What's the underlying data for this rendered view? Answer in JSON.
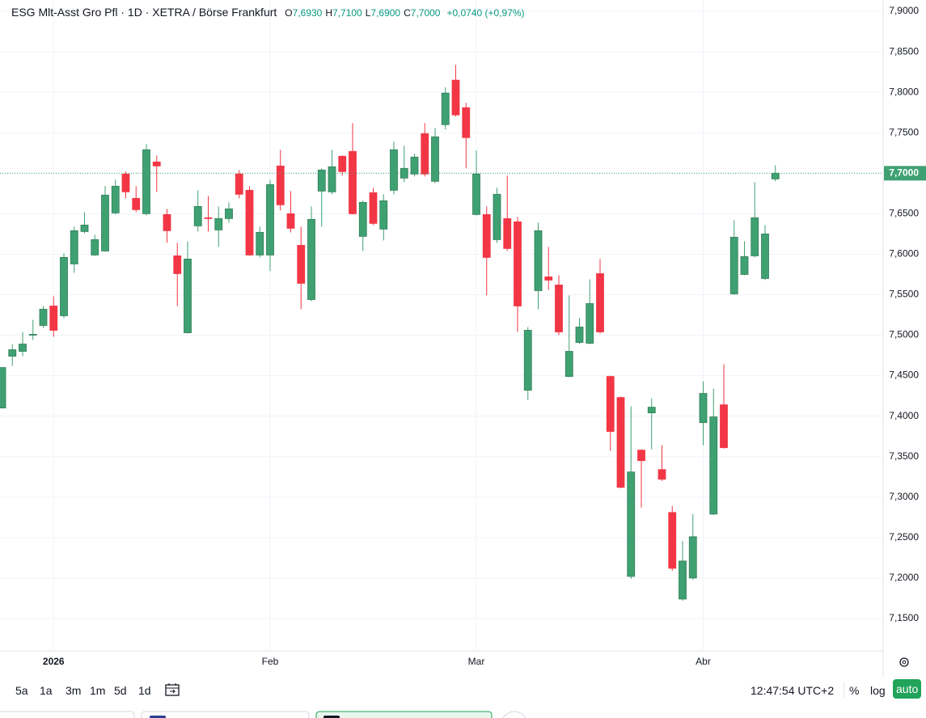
{
  "chart_data": {
    "type": "candlestick",
    "title": "ESG Mlt-Asst Gro Pfl · 1D · XETRA / Börse Frankfurt",
    "ohlc_header": [
      {
        "key": "O",
        "text": "7,6930"
      },
      {
        "key": "H",
        "text": "7,7100"
      },
      {
        "key": "L",
        "text": "7,6900"
      },
      {
        "key": "C",
        "text": "7,7000"
      }
    ],
    "change_text": "+0,0740 (+0,97%)",
    "categories": [
      null,
      null,
      null,
      null,
      null,
      "2026",
      null,
      null,
      null,
      null,
      null,
      null,
      null,
      null,
      null,
      null,
      null,
      null,
      null,
      null,
      null,
      null,
      null,
      null,
      null,
      null,
      "Feb",
      null,
      null,
      null,
      null,
      null,
      null,
      null,
      null,
      null,
      null,
      null,
      null,
      null,
      null,
      null,
      null,
      null,
      null,
      null,
      "Mar",
      null,
      null,
      null,
      null,
      null,
      null,
      null,
      null,
      null,
      null,
      null,
      null,
      null,
      null,
      null,
      null,
      null,
      null,
      null,
      null,
      null,
      "Abr",
      null,
      null,
      null,
      null,
      null,
      null,
      null
    ],
    "open": [
      7.41,
      7.474,
      7.48,
      7.5,
      7.512,
      7.536,
      7.524,
      7.588,
      7.628,
      7.599,
      7.604,
      7.651,
      7.699,
      7.669,
      7.65,
      7.714,
      7.649,
      7.598,
      7.503,
      7.635,
      7.645,
      7.63,
      7.644,
      7.699,
      7.679,
      7.599,
      7.599,
      7.709,
      7.65,
      7.611,
      7.544,
      7.678,
      7.677,
      7.721,
      7.727,
      7.622,
      7.676,
      7.631,
      7.679,
      7.694,
      7.699,
      7.749,
      7.69,
      7.76,
      7.815,
      7.781,
      7.649,
      7.649,
      7.618,
      7.644,
      7.64,
      7.432,
      7.555,
      7.572,
      7.562,
      7.449,
      7.491,
      7.49,
      7.576,
      7.449,
      7.423,
      7.202,
      7.358,
      7.404,
      7.334,
      7.281,
      7.174,
      7.2,
      7.392,
      7.279,
      7.414,
      7.551,
      7.575,
      7.598,
      7.57,
      7.693
    ],
    "high": [
      7.46,
      7.489,
      7.504,
      7.519,
      7.536,
      7.548,
      7.601,
      7.634,
      7.652,
      7.624,
      7.684,
      7.692,
      7.702,
      7.684,
      7.736,
      7.722,
      7.656,
      7.614,
      7.616,
      7.679,
      7.672,
      7.659,
      7.664,
      7.704,
      7.684,
      7.634,
      7.692,
      7.729,
      7.678,
      7.634,
      7.659,
      7.706,
      7.729,
      7.722,
      7.762,
      7.666,
      7.682,
      7.674,
      7.739,
      7.734,
      7.724,
      7.762,
      7.756,
      7.806,
      7.834,
      7.787,
      7.728,
      7.659,
      7.682,
      7.697,
      7.646,
      7.51,
      7.639,
      7.609,
      7.574,
      7.549,
      7.521,
      7.569,
      7.594,
      7.45,
      7.424,
      7.412,
      7.359,
      7.422,
      7.364,
      7.289,
      7.246,
      7.279,
      7.443,
      7.434,
      7.464,
      7.642,
      7.616,
      7.689,
      7.636,
      7.71
    ],
    "low": [
      7.41,
      7.462,
      7.474,
      7.494,
      7.509,
      7.498,
      7.521,
      7.577,
      7.626,
      7.598,
      7.603,
      7.649,
      7.669,
      7.652,
      7.648,
      7.677,
      7.614,
      7.536,
      7.502,
      7.628,
      7.628,
      7.609,
      7.639,
      7.669,
      7.598,
      7.596,
      7.579,
      7.654,
      7.627,
      7.532,
      7.542,
      7.634,
      7.674,
      7.697,
      7.649,
      7.604,
      7.636,
      7.617,
      7.674,
      7.689,
      7.696,
      7.696,
      7.688,
      7.754,
      7.77,
      7.706,
      7.648,
      7.549,
      7.614,
      7.604,
      7.504,
      7.42,
      7.532,
      7.556,
      7.5,
      7.448,
      7.489,
      7.489,
      7.502,
      7.357,
      7.311,
      7.199,
      7.287,
      7.359,
      7.32,
      7.209,
      7.172,
      7.198,
      7.364,
      7.278,
      7.36,
      7.55,
      7.574,
      7.596,
      7.568,
      7.69
    ],
    "close": [
      7.46,
      7.482,
      7.489,
      7.501,
      7.532,
      7.506,
      7.596,
      7.629,
      7.636,
      7.618,
      7.673,
      7.684,
      7.677,
      7.655,
      7.729,
      7.709,
      7.629,
      7.576,
      7.594,
      7.659,
      7.644,
      7.644,
      7.656,
      7.674,
      7.599,
      7.627,
      7.686,
      7.661,
      7.632,
      7.564,
      7.643,
      7.704,
      7.708,
      7.702,
      7.65,
      7.664,
      7.638,
      7.666,
      7.729,
      7.706,
      7.72,
      7.699,
      7.745,
      7.799,
      7.772,
      7.744,
      7.699,
      7.596,
      7.674,
      7.607,
      7.536,
      7.506,
      7.629,
      7.568,
      7.504,
      7.48,
      7.51,
      7.539,
      7.504,
      7.381,
      7.312,
      7.331,
      7.345,
      7.411,
      7.322,
      7.212,
      7.221,
      7.251,
      7.428,
      7.399,
      7.361,
      7.621,
      7.597,
      7.645,
      7.625,
      7.7
    ],
    "up_color": "#3fa172",
    "down_color": "#f23645",
    "ylim": [
      7.11,
      7.914
    ],
    "yticks": [
      {
        "value": 7.15,
        "label": "7,1500"
      },
      {
        "value": 7.2,
        "label": "7,2000"
      },
      {
        "value": 7.25,
        "label": "7,2500"
      },
      {
        "value": 7.3,
        "label": "7,3000"
      },
      {
        "value": 7.35,
        "label": "7,3500"
      },
      {
        "value": 7.4,
        "label": "7,4000"
      },
      {
        "value": 7.45,
        "label": "7,4500"
      },
      {
        "value": 7.5,
        "label": "7,5000"
      },
      {
        "value": 7.55,
        "label": "7,5500"
      },
      {
        "value": 7.6,
        "label": "7,6000"
      },
      {
        "value": 7.65,
        "label": "7,6500"
      },
      {
        "value": 7.7,
        "label": "7,7000"
      },
      {
        "value": 7.75,
        "label": "7,7500"
      },
      {
        "value": 7.8,
        "label": "7,8000"
      },
      {
        "value": 7.85,
        "label": "7,8500"
      },
      {
        "value": 7.9,
        "label": "7,9000"
      }
    ],
    "price_line": {
      "value": 7.7,
      "label": "7,7000"
    },
    "grid": true
  },
  "toolbar": {
    "ranges": [
      "5a",
      "1a",
      "3m",
      "1m",
      "5d",
      "1d"
    ],
    "clock": "12:47:54 UTC+2",
    "options": [
      "%",
      "log"
    ],
    "auto": "auto"
  }
}
